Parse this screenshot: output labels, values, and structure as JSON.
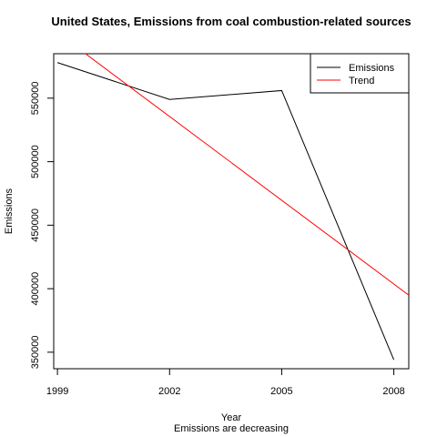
{
  "chart_data": {
    "type": "line",
    "title": "United States, Emissions from coal combustion-related sources",
    "xlabel": "Year",
    "subtitle": "Emissions are decreasing",
    "ylabel": "Emissions",
    "x": [
      1999,
      2002,
      2005,
      2008
    ],
    "xticks": [
      "1999",
      "2002",
      "2005",
      "2008"
    ],
    "yticks": [
      "350000",
      "400000",
      "450000",
      "500000",
      "550000"
    ],
    "ytick_values": [
      350000,
      400000,
      450000,
      500000,
      550000
    ],
    "xlim": [
      1998.9,
      2008.4
    ],
    "ylim": [
      337000,
      585000
    ],
    "series": [
      {
        "name": "Emissions",
        "color": "#000000",
        "values": [
          578000,
          549000,
          556000,
          344000
        ]
      },
      {
        "name": "Trend",
        "color": "#ff0000",
        "line": {
          "x": [
            1998.9,
            2008.4
          ],
          "y": [
            603700,
            394900
          ]
        }
      }
    ],
    "legend": {
      "position": "top-right",
      "entries": [
        "Emissions",
        "Trend"
      ]
    },
    "grid": false
  }
}
